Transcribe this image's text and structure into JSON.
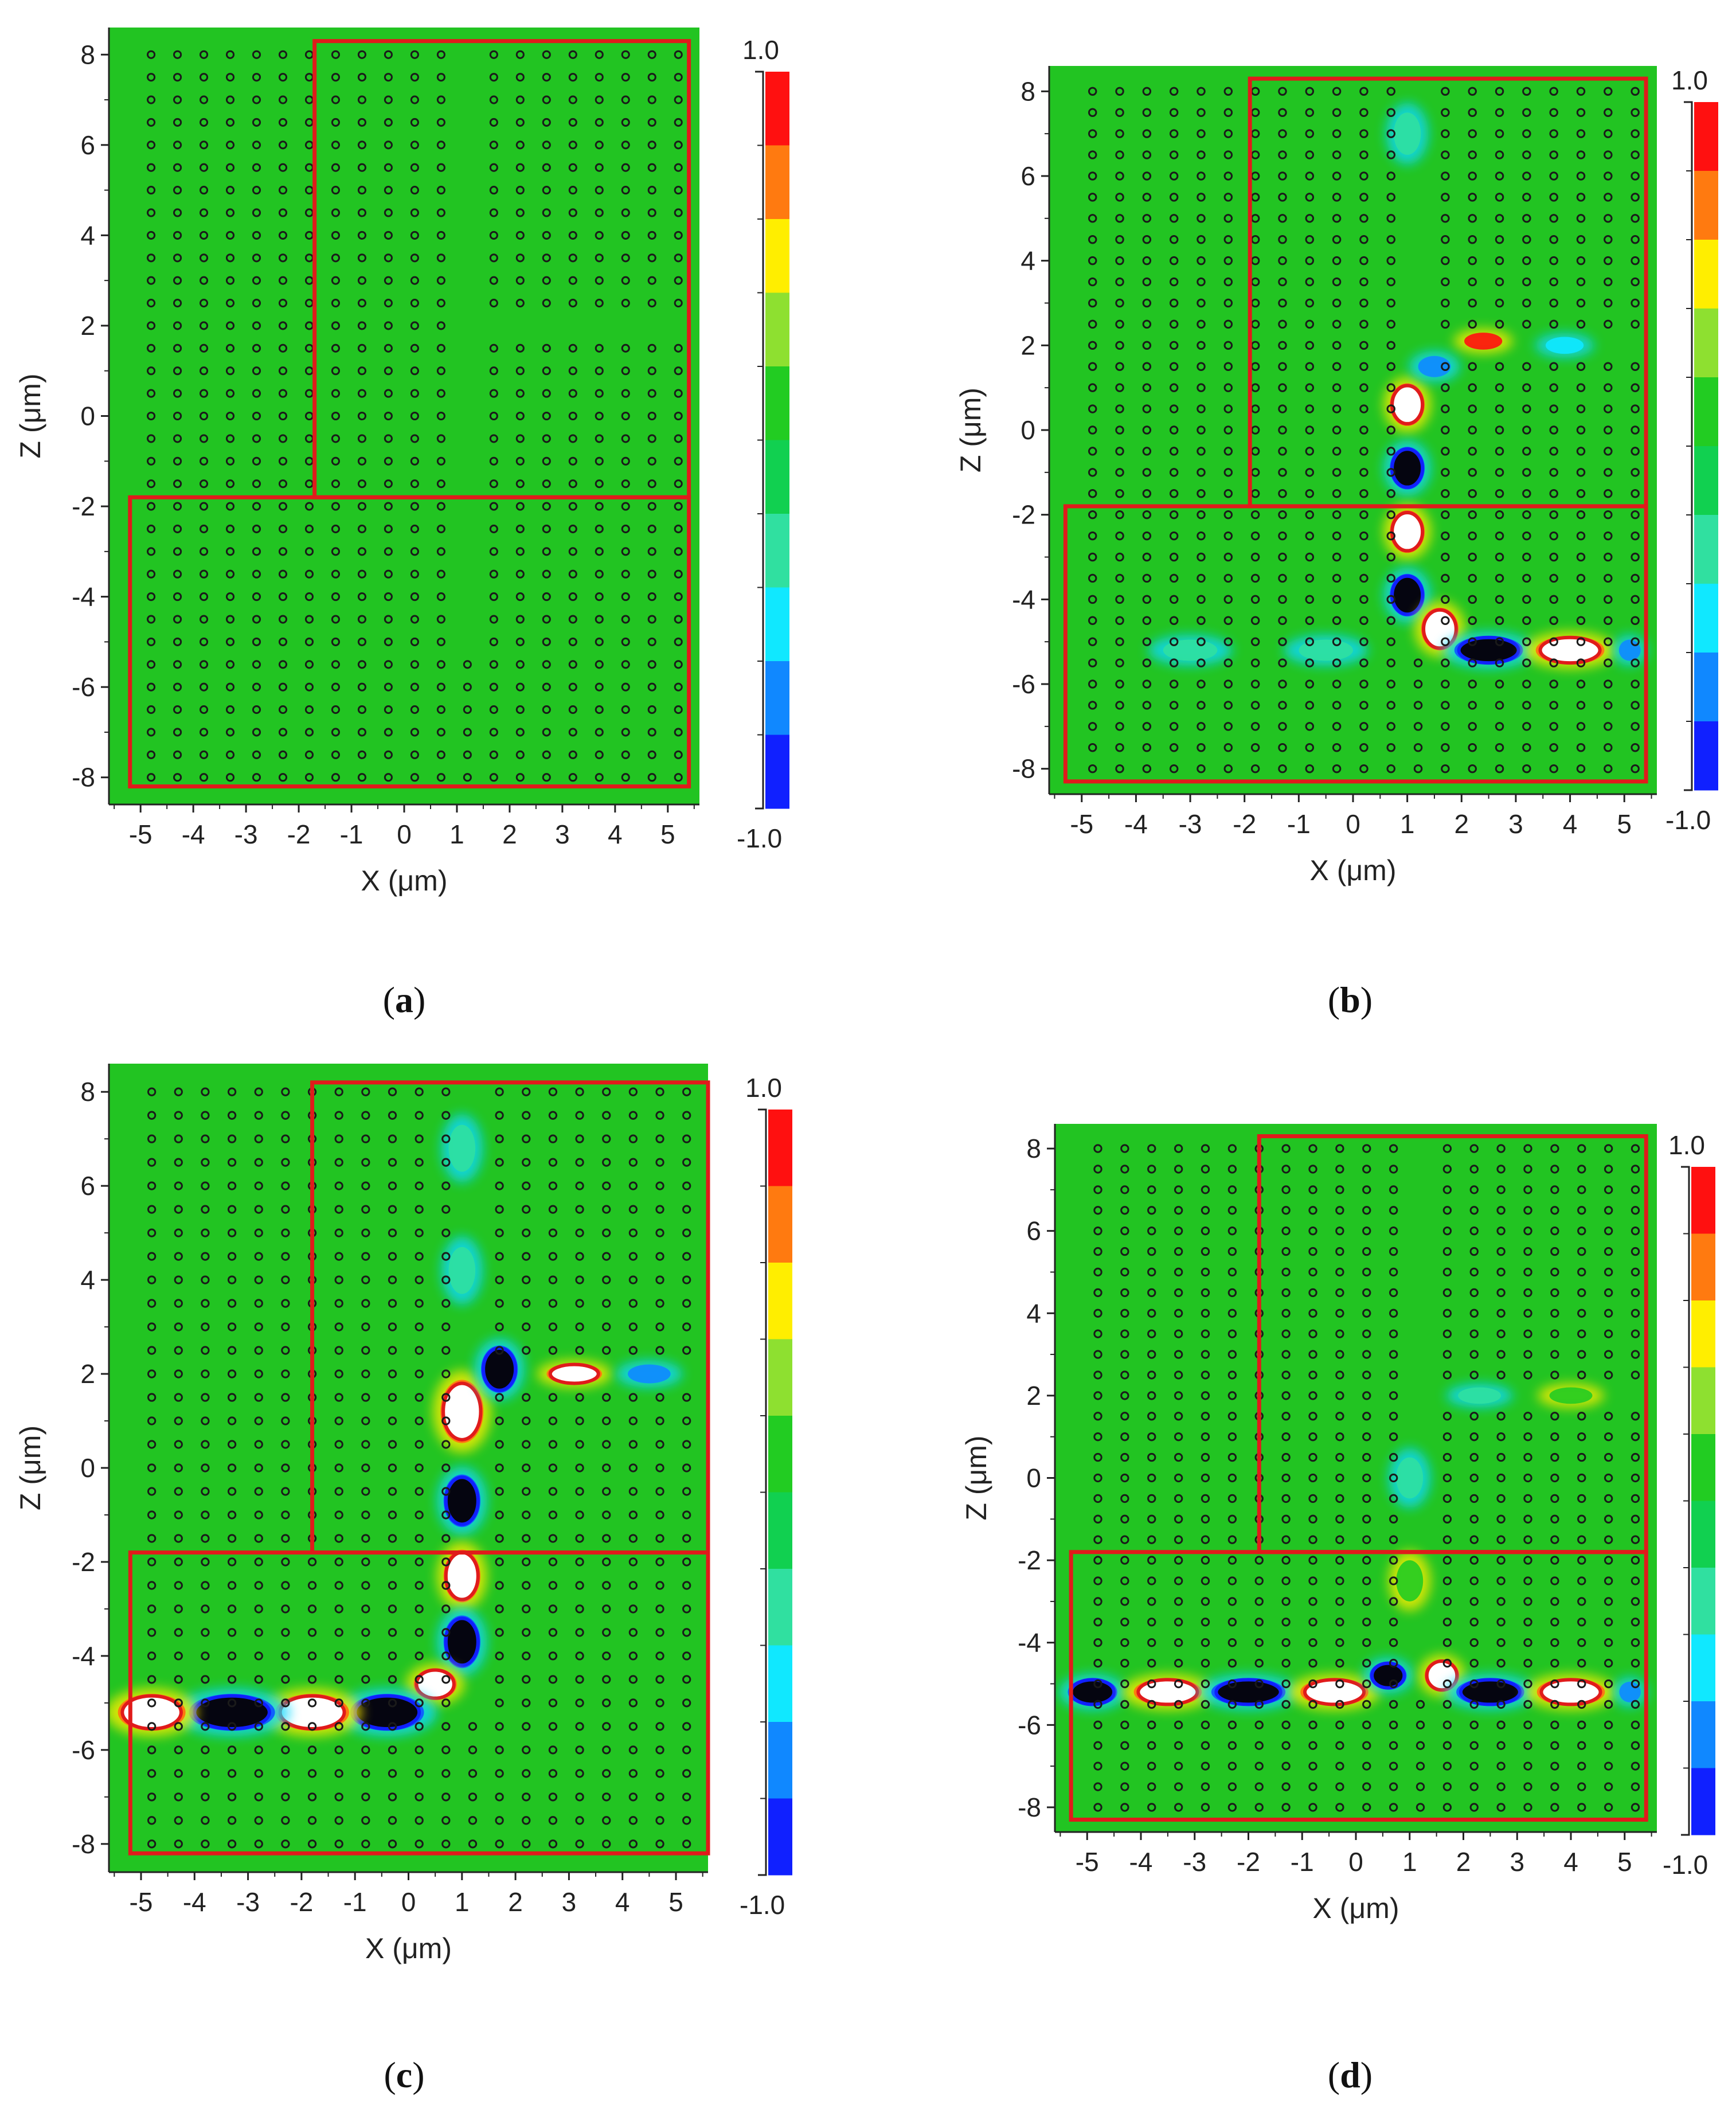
{
  "figure": {
    "description": "FDTD field distributions in a photonic crystal waveguide structure, four time snapshots",
    "colors": {
      "background": "#ffffff",
      "field": "#22c422",
      "region_border": "#e01b1b",
      "rod": "#1a1a1a",
      "axis": "#222222"
    }
  },
  "colorbar": {
    "max_label": "1.0",
    "min_label": "-1.0",
    "levels": [
      1.0,
      0.8,
      0.6,
      0.4,
      0.2,
      0.0,
      -0.2,
      -0.4,
      -0.6,
      -0.8,
      -1.0
    ],
    "colors": [
      "#ff1010",
      "#ff7a10",
      "#ffee00",
      "#8ee030",
      "#22cc22",
      "#11d050",
      "#30e0a0",
      "#10e8ff",
      "#1088ff",
      "#1020ff"
    ]
  },
  "chart_data": [
    {
      "type": "heatmap",
      "panel": "a",
      "caption_open": "(",
      "caption_letter": "a",
      "caption_close": ")",
      "xlabel": "X (μm)",
      "ylabel": "Z (μm)",
      "xlim": [
        -5.6,
        5.6
      ],
      "ylim": [
        -8.6,
        8.6
      ],
      "xticks": [
        -5,
        -4,
        -3,
        -2,
        -1,
        0,
        1,
        2,
        3,
        4,
        5
      ],
      "yticks": [
        -8,
        -6,
        -4,
        -2,
        0,
        2,
        4,
        6,
        8
      ],
      "colorbar_max": "1.0",
      "colorbar_min": "-1.0",
      "regions": [
        {
          "x": [
            -1.7,
            5.4
          ],
          "z": [
            -1.8,
            8.3
          ]
        },
        {
          "x": [
            -5.2,
            5.4
          ],
          "z": [
            -8.2,
            -1.8
          ]
        }
      ],
      "waveguides": {
        "horizontal_z": -5.2,
        "vertical_x": 1.0,
        "branch_z": 2.0
      },
      "field_spots": []
    },
    {
      "type": "heatmap",
      "panel": "b",
      "caption_open": "(",
      "caption_letter": "b",
      "caption_close": ")",
      "xlabel": "X (μm)",
      "ylabel": "Z (μm)",
      "xlim": [
        -5.6,
        5.6
      ],
      "ylim": [
        -8.6,
        8.6
      ],
      "xticks": [
        -5,
        -4,
        -3,
        -2,
        -1,
        0,
        1,
        2,
        3,
        4,
        5
      ],
      "yticks": [
        -8,
        -6,
        -4,
        -2,
        0,
        2,
        4,
        6,
        8
      ],
      "colorbar_max": "1.0",
      "colorbar_min": "-1.0",
      "regions": [
        {
          "x": [
            -1.9,
            5.4
          ],
          "z": [
            -1.8,
            8.3
          ]
        },
        {
          "x": [
            -5.3,
            5.4
          ],
          "z": [
            -8.3,
            -1.8
          ]
        }
      ],
      "waveguides": {
        "horizontal_z": -5.2,
        "vertical_x": 1.0,
        "branch_z": 2.0
      },
      "field_spots": [
        {
          "x": 1.0,
          "z": 0.6,
          "value": 1.0,
          "rx": 0.28,
          "rz": 0.45
        },
        {
          "x": 1.0,
          "z": -0.9,
          "value": -1.0,
          "rx": 0.28,
          "rz": 0.45
        },
        {
          "x": 1.0,
          "z": -2.4,
          "value": 1.0,
          "rx": 0.28,
          "rz": 0.45
        },
        {
          "x": 1.0,
          "z": -3.9,
          "value": -1.0,
          "rx": 0.28,
          "rz": 0.45
        },
        {
          "x": 1.6,
          "z": -4.7,
          "value": 1.0,
          "rx": 0.3,
          "rz": 0.45
        },
        {
          "x": 2.5,
          "z": -5.2,
          "value": -1.0,
          "rx": 0.55,
          "rz": 0.3
        },
        {
          "x": 4.0,
          "z": -5.2,
          "value": 1.0,
          "rx": 0.55,
          "rz": 0.3
        },
        {
          "x": 5.1,
          "z": -5.2,
          "value": -0.6,
          "rx": 0.2,
          "rz": 0.25
        },
        {
          "x": 2.4,
          "z": 2.1,
          "value": 0.8,
          "rx": 0.35,
          "rz": 0.2
        },
        {
          "x": 1.5,
          "z": 1.5,
          "value": -0.6,
          "rx": 0.3,
          "rz": 0.25
        },
        {
          "x": 3.9,
          "z": 2.0,
          "value": -0.4,
          "rx": 0.35,
          "rz": 0.2
        },
        {
          "x": 1.0,
          "z": 7.0,
          "value": -0.3,
          "rx": 0.25,
          "rz": 0.5
        },
        {
          "x": -3.0,
          "z": -5.2,
          "value": -0.2,
          "rx": 0.5,
          "rz": 0.25
        },
        {
          "x": -0.5,
          "z": -5.2,
          "value": -0.2,
          "rx": 0.5,
          "rz": 0.25
        }
      ]
    },
    {
      "type": "heatmap",
      "panel": "c",
      "caption_open": "(",
      "caption_letter": "c",
      "caption_close": ")",
      "xlabel": "X (μm)",
      "ylabel": "Z (μm)",
      "xlim": [
        -5.6,
        5.6
      ],
      "ylim": [
        -8.6,
        8.6
      ],
      "xticks": [
        -5,
        -4,
        -3,
        -2,
        -1,
        0,
        1,
        2,
        3,
        4,
        5
      ],
      "yticks": [
        -8,
        -6,
        -4,
        -2,
        0,
        2,
        4,
        6,
        8
      ],
      "colorbar_max": "1.0",
      "colorbar_min": "-1.0",
      "regions": [
        {
          "x": [
            -1.8,
            5.6
          ],
          "z": [
            -1.8,
            8.2
          ]
        },
        {
          "x": [
            -5.2,
            5.6
          ],
          "z": [
            -8.2,
            -1.8
          ]
        }
      ],
      "waveguides": {
        "horizontal_z": -5.2,
        "vertical_x": 1.0,
        "branch_z": 2.0
      },
      "field_spots": [
        {
          "x": 1.0,
          "z": 1.2,
          "value": 1.0,
          "rx": 0.35,
          "rz": 0.6
        },
        {
          "x": 1.7,
          "z": 2.1,
          "value": -1.0,
          "rx": 0.3,
          "rz": 0.45
        },
        {
          "x": 3.1,
          "z": 2.0,
          "value": 1.0,
          "rx": 0.45,
          "rz": 0.2
        },
        {
          "x": 4.5,
          "z": 2.0,
          "value": -0.6,
          "rx": 0.4,
          "rz": 0.2
        },
        {
          "x": 1.0,
          "z": -0.7,
          "value": -1.0,
          "rx": 0.3,
          "rz": 0.5
        },
        {
          "x": 1.0,
          "z": -2.3,
          "value": 1.0,
          "rx": 0.3,
          "rz": 0.5
        },
        {
          "x": 1.0,
          "z": -3.7,
          "value": -1.0,
          "rx": 0.3,
          "rz": 0.5
        },
        {
          "x": 0.5,
          "z": -4.6,
          "value": 1.0,
          "rx": 0.35,
          "rz": 0.3
        },
        {
          "x": -0.4,
          "z": -5.2,
          "value": -1.0,
          "rx": 0.6,
          "rz": 0.35
        },
        {
          "x": -1.8,
          "z": -5.2,
          "value": 1.0,
          "rx": 0.6,
          "rz": 0.35
        },
        {
          "x": -3.3,
          "z": -5.2,
          "value": -1.0,
          "rx": 0.7,
          "rz": 0.35
        },
        {
          "x": -4.8,
          "z": -5.2,
          "value": 1.0,
          "rx": 0.55,
          "rz": 0.35
        },
        {
          "x": 1.0,
          "z": 4.2,
          "value": -0.3,
          "rx": 0.25,
          "rz": 0.5
        },
        {
          "x": 1.0,
          "z": 6.8,
          "value": -0.3,
          "rx": 0.25,
          "rz": 0.5
        }
      ]
    },
    {
      "type": "heatmap",
      "panel": "d",
      "caption_open": "(",
      "caption_letter": "d",
      "caption_close": ")",
      "xlabel": "X (μm)",
      "ylabel": "Z (μm)",
      "xlim": [
        -5.6,
        5.6
      ],
      "ylim": [
        -8.6,
        8.6
      ],
      "xticks": [
        -5,
        -4,
        -3,
        -2,
        -1,
        0,
        1,
        2,
        3,
        4,
        5
      ],
      "yticks": [
        -8,
        -6,
        -4,
        -2,
        0,
        2,
        4,
        6,
        8
      ],
      "colorbar_max": "1.0",
      "colorbar_min": "-1.0",
      "regions": [
        {
          "x": [
            -1.8,
            5.4
          ],
          "z": [
            -1.8,
            8.3
          ]
        },
        {
          "x": [
            -5.3,
            5.4
          ],
          "z": [
            -8.3,
            -1.8
          ]
        }
      ],
      "waveguides": {
        "horizontal_z": -5.2,
        "vertical_x": 1.0,
        "branch_z": 2.0
      },
      "field_spots": [
        {
          "x": -4.9,
          "z": -5.2,
          "value": -1.0,
          "rx": 0.4,
          "rz": 0.3
        },
        {
          "x": -3.5,
          "z": -5.2,
          "value": 1.0,
          "rx": 0.55,
          "rz": 0.3
        },
        {
          "x": -2.0,
          "z": -5.2,
          "value": -1.0,
          "rx": 0.6,
          "rz": 0.3
        },
        {
          "x": -0.4,
          "z": -5.2,
          "value": 1.0,
          "rx": 0.55,
          "rz": 0.3
        },
        {
          "x": 0.6,
          "z": -4.8,
          "value": -1.0,
          "rx": 0.3,
          "rz": 0.3
        },
        {
          "x": 1.6,
          "z": -4.8,
          "value": 1.0,
          "rx": 0.28,
          "rz": 0.35
        },
        {
          "x": 2.5,
          "z": -5.2,
          "value": -1.0,
          "rx": 0.55,
          "rz": 0.3
        },
        {
          "x": 4.0,
          "z": -5.2,
          "value": 1.0,
          "rx": 0.55,
          "rz": 0.3
        },
        {
          "x": 5.1,
          "z": -5.2,
          "value": -0.6,
          "rx": 0.2,
          "rz": 0.25
        },
        {
          "x": 1.0,
          "z": 0.0,
          "value": -0.2,
          "rx": 0.25,
          "rz": 0.5
        },
        {
          "x": 1.0,
          "z": -2.5,
          "value": 0.2,
          "rx": 0.25,
          "rz": 0.5
        },
        {
          "x": 2.3,
          "z": 2.0,
          "value": -0.2,
          "rx": 0.4,
          "rz": 0.2
        },
        {
          "x": 4.0,
          "z": 2.0,
          "value": 0.2,
          "rx": 0.4,
          "rz": 0.2
        }
      ]
    }
  ]
}
